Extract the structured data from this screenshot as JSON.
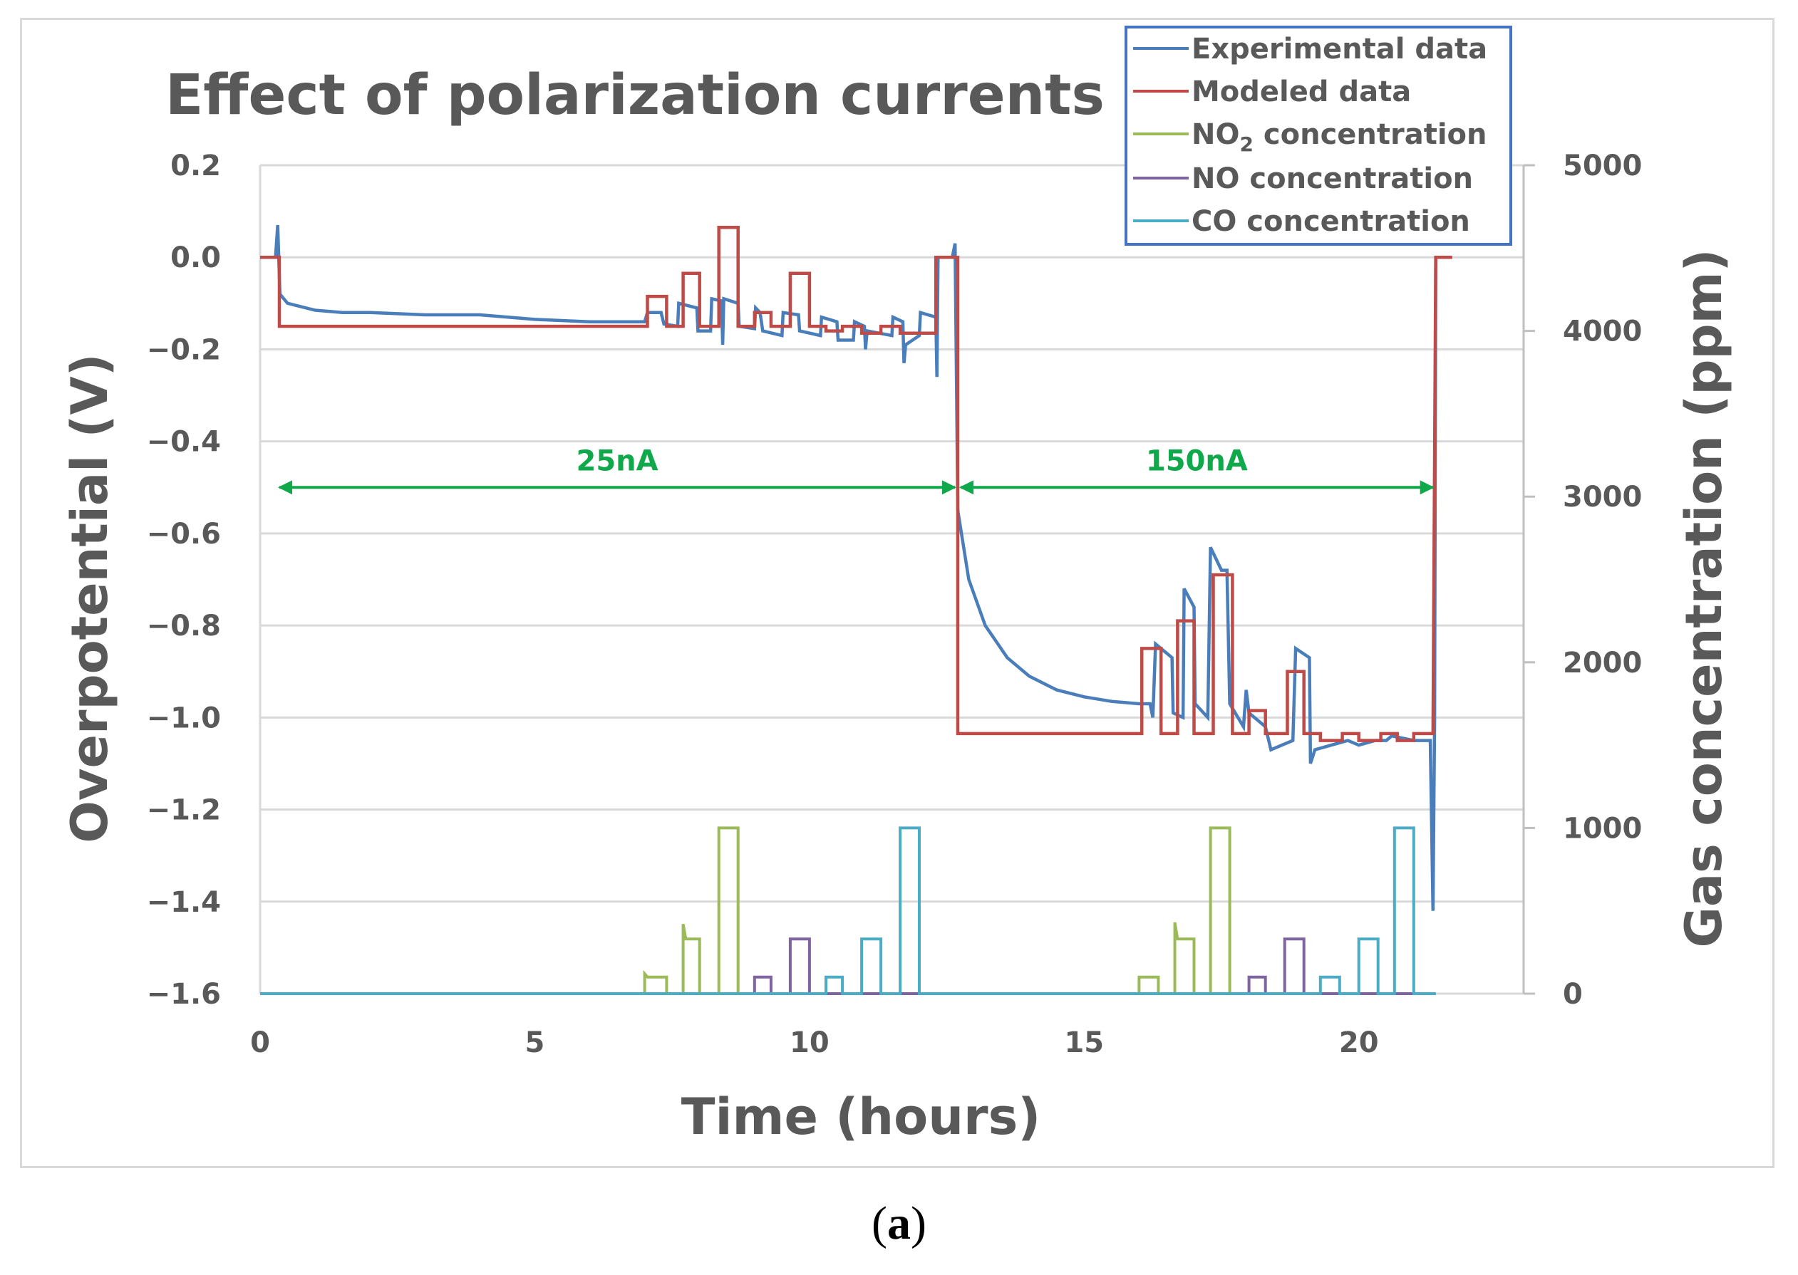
{
  "caption": {
    "open": "(",
    "letter": "a",
    "close": ")"
  },
  "chart_data": {
    "type": "line",
    "title": "Effect of polarization currents",
    "xlabel": "Time (hours)",
    "ylabel": "Overpotential (V)",
    "y2label": "Gas concentration (ppm)",
    "xlim": [
      0,
      23
    ],
    "ylim": [
      -1.6,
      0.2
    ],
    "y2lim": [
      0,
      5000
    ],
    "x_ticks": [
      "0",
      "5",
      "10",
      "15",
      "20"
    ],
    "x_tick_values": [
      0,
      5,
      10,
      15,
      20
    ],
    "y_ticks": [
      "0.2",
      "0.0",
      "−0.2",
      "−0.4",
      "−0.6",
      "−0.8",
      "−1.0",
      "−1.2",
      "−1.4",
      "−1.6"
    ],
    "y_tick_values": [
      0.2,
      0.0,
      -0.2,
      -0.4,
      -0.6,
      -0.8,
      -1.0,
      -1.2,
      -1.4,
      -1.6
    ],
    "y2_ticks": [
      "5000",
      "4000",
      "3000",
      "2000",
      "1000",
      "0"
    ],
    "y2_tick_values": [
      5000,
      4000,
      3000,
      2000,
      1000,
      0
    ],
    "gridlines": "horizontal",
    "legend_position": "top-right",
    "legend": [
      {
        "label": "Experimental data",
        "color": "#4a7ebb"
      },
      {
        "label": "Modeled data",
        "color": "#be4b48"
      },
      {
        "label_main": "NO",
        "label_sub": "2",
        "label_rest": " concentration",
        "color": "#9bbb59"
      },
      {
        "label": "NO concentration",
        "color": "#8064a2"
      },
      {
        "label": "CO concentration",
        "color": "#4bacc6"
      }
    ],
    "annotations": [
      {
        "text": "25nA",
        "x_start": 0.3,
        "x_end": 12.7,
        "y": -0.5
      },
      {
        "text": "150nA",
        "x_start": 12.7,
        "x_end": 21.4,
        "y": -0.5
      }
    ],
    "series": [
      {
        "name": "Experimental data",
        "axis": "left",
        "color": "#4a7ebb",
        "points": [
          [
            0,
            0.0
          ],
          [
            0.28,
            0.0
          ],
          [
            0.32,
            0.07
          ],
          [
            0.36,
            -0.08
          ],
          [
            0.5,
            -0.1
          ],
          [
            1.0,
            -0.115
          ],
          [
            1.5,
            -0.12
          ],
          [
            2.0,
            -0.12
          ],
          [
            3.0,
            -0.125
          ],
          [
            4.0,
            -0.125
          ],
          [
            5.0,
            -0.135
          ],
          [
            6.0,
            -0.14
          ],
          [
            7.0,
            -0.14
          ],
          [
            7.05,
            -0.12
          ],
          [
            7.3,
            -0.12
          ],
          [
            7.35,
            -0.145
          ],
          [
            7.6,
            -0.15
          ],
          [
            7.62,
            -0.1
          ],
          [
            7.95,
            -0.11
          ],
          [
            7.97,
            -0.16
          ],
          [
            8.2,
            -0.16
          ],
          [
            8.22,
            -0.09
          ],
          [
            8.4,
            -0.095
          ],
          [
            8.42,
            -0.19
          ],
          [
            8.44,
            -0.09
          ],
          [
            8.7,
            -0.1
          ],
          [
            8.72,
            -0.15
          ],
          [
            9.0,
            -0.155
          ],
          [
            9.02,
            -0.11
          ],
          [
            9.1,
            -0.12
          ],
          [
            9.15,
            -0.16
          ],
          [
            9.5,
            -0.17
          ],
          [
            9.52,
            -0.12
          ],
          [
            9.8,
            -0.125
          ],
          [
            9.82,
            -0.16
          ],
          [
            10.2,
            -0.17
          ],
          [
            10.22,
            -0.13
          ],
          [
            10.5,
            -0.14
          ],
          [
            10.52,
            -0.18
          ],
          [
            10.8,
            -0.18
          ],
          [
            10.82,
            -0.14
          ],
          [
            11.0,
            -0.15
          ],
          [
            11.02,
            -0.2
          ],
          [
            11.05,
            -0.16
          ],
          [
            11.5,
            -0.17
          ],
          [
            11.52,
            -0.13
          ],
          [
            11.7,
            -0.14
          ],
          [
            11.72,
            -0.23
          ],
          [
            11.75,
            -0.19
          ],
          [
            12.0,
            -0.17
          ],
          [
            12.02,
            -0.12
          ],
          [
            12.3,
            -0.13
          ],
          [
            12.32,
            -0.26
          ],
          [
            12.34,
            0.0
          ],
          [
            12.6,
            0.0
          ],
          [
            12.65,
            0.03
          ],
          [
            12.7,
            -0.55
          ],
          [
            12.9,
            -0.7
          ],
          [
            13.2,
            -0.8
          ],
          [
            13.6,
            -0.87
          ],
          [
            14.0,
            -0.91
          ],
          [
            14.5,
            -0.94
          ],
          [
            15.0,
            -0.955
          ],
          [
            15.5,
            -0.965
          ],
          [
            16.0,
            -0.97
          ],
          [
            16.2,
            -0.97
          ],
          [
            16.25,
            -1.0
          ],
          [
            16.3,
            -0.84
          ],
          [
            16.6,
            -0.87
          ],
          [
            16.62,
            -0.99
          ],
          [
            16.8,
            -1.0
          ],
          [
            16.82,
            -0.72
          ],
          [
            17.0,
            -0.76
          ],
          [
            17.02,
            -0.97
          ],
          [
            17.25,
            -1.0
          ],
          [
            17.3,
            -0.63
          ],
          [
            17.5,
            -0.68
          ],
          [
            17.6,
            -0.68
          ],
          [
            17.65,
            -0.97
          ],
          [
            17.9,
            -1.02
          ],
          [
            17.95,
            -0.94
          ],
          [
            18.0,
            -0.99
          ],
          [
            18.3,
            -1.02
          ],
          [
            18.4,
            -1.07
          ],
          [
            18.6,
            -1.06
          ],
          [
            18.8,
            -1.05
          ],
          [
            18.85,
            -0.85
          ],
          [
            19.1,
            -0.87
          ],
          [
            19.12,
            -1.1
          ],
          [
            19.2,
            -1.07
          ],
          [
            19.5,
            -1.06
          ],
          [
            19.8,
            -1.05
          ],
          [
            20.0,
            -1.06
          ],
          [
            20.3,
            -1.05
          ],
          [
            20.5,
            -1.05
          ],
          [
            20.6,
            -1.04
          ],
          [
            21.0,
            -1.05
          ],
          [
            21.3,
            -1.05
          ],
          [
            21.35,
            -1.42
          ],
          [
            21.38,
            -1.0
          ],
          [
            21.4,
            0.0
          ],
          [
            21.6,
            0.0
          ]
        ]
      },
      {
        "name": "Modeled data",
        "axis": "left",
        "color": "#be4b48",
        "points": [
          [
            0,
            0.0
          ],
          [
            0.35,
            0.0
          ],
          [
            0.35,
            -0.15
          ],
          [
            7.05,
            -0.15
          ],
          [
            7.05,
            -0.085
          ],
          [
            7.4,
            -0.085
          ],
          [
            7.4,
            -0.15
          ],
          [
            7.7,
            -0.15
          ],
          [
            7.7,
            -0.035
          ],
          [
            8.0,
            -0.035
          ],
          [
            8.0,
            -0.15
          ],
          [
            8.35,
            -0.15
          ],
          [
            8.35,
            0.065
          ],
          [
            8.7,
            0.065
          ],
          [
            8.7,
            -0.15
          ],
          [
            9.0,
            -0.15
          ],
          [
            9.0,
            -0.12
          ],
          [
            9.3,
            -0.12
          ],
          [
            9.3,
            -0.15
          ],
          [
            9.65,
            -0.15
          ],
          [
            9.65,
            -0.035
          ],
          [
            10.0,
            -0.035
          ],
          [
            10.0,
            -0.15
          ],
          [
            10.3,
            -0.15
          ],
          [
            10.3,
            -0.16
          ],
          [
            10.6,
            -0.16
          ],
          [
            10.6,
            -0.15
          ],
          [
            10.95,
            -0.15
          ],
          [
            10.95,
            -0.165
          ],
          [
            11.3,
            -0.165
          ],
          [
            11.3,
            -0.15
          ],
          [
            11.65,
            -0.15
          ],
          [
            11.65,
            -0.165
          ],
          [
            12.3,
            -0.165
          ],
          [
            12.3,
            0.0
          ],
          [
            12.7,
            0.0
          ],
          [
            12.7,
            -1.035
          ],
          [
            16.05,
            -1.035
          ],
          [
            16.05,
            -0.85
          ],
          [
            16.4,
            -0.85
          ],
          [
            16.4,
            -1.035
          ],
          [
            16.7,
            -1.035
          ],
          [
            16.7,
            -0.79
          ],
          [
            17.0,
            -0.79
          ],
          [
            17.0,
            -1.035
          ],
          [
            17.35,
            -1.035
          ],
          [
            17.35,
            -0.69
          ],
          [
            17.7,
            -0.69
          ],
          [
            17.7,
            -1.035
          ],
          [
            18.0,
            -1.035
          ],
          [
            18.0,
            -0.985
          ],
          [
            18.3,
            -0.985
          ],
          [
            18.3,
            -1.035
          ],
          [
            18.7,
            -1.035
          ],
          [
            18.7,
            -0.9
          ],
          [
            19.0,
            -0.9
          ],
          [
            19.0,
            -1.035
          ],
          [
            19.3,
            -1.035
          ],
          [
            19.3,
            -1.05
          ],
          [
            19.7,
            -1.05
          ],
          [
            19.7,
            -1.035
          ],
          [
            20.0,
            -1.035
          ],
          [
            20.0,
            -1.05
          ],
          [
            20.4,
            -1.05
          ],
          [
            20.4,
            -1.035
          ],
          [
            20.7,
            -1.035
          ],
          [
            20.7,
            -1.05
          ],
          [
            21.0,
            -1.05
          ],
          [
            21.0,
            -1.035
          ],
          [
            21.35,
            -1.035
          ],
          [
            21.4,
            0.0
          ],
          [
            21.7,
            0.0
          ]
        ]
      },
      {
        "name": "NO2 concentration",
        "axis": "right",
        "color": "#9bbb59",
        "points": [
          [
            0,
            0
          ],
          [
            7.0,
            0
          ],
          [
            7.0,
            120
          ],
          [
            7.05,
            100
          ],
          [
            7.4,
            100
          ],
          [
            7.4,
            0
          ],
          [
            7.7,
            0
          ],
          [
            7.7,
            420
          ],
          [
            7.75,
            330
          ],
          [
            8.0,
            330
          ],
          [
            8.0,
            0
          ],
          [
            8.35,
            0
          ],
          [
            8.35,
            1000
          ],
          [
            8.7,
            1000
          ],
          [
            8.7,
            0
          ],
          [
            16.0,
            0
          ],
          [
            16.0,
            100
          ],
          [
            16.35,
            100
          ],
          [
            16.35,
            0
          ],
          [
            16.65,
            0
          ],
          [
            16.65,
            430
          ],
          [
            16.7,
            330
          ],
          [
            17.0,
            330
          ],
          [
            17.0,
            0
          ],
          [
            17.3,
            0
          ],
          [
            17.3,
            1000
          ],
          [
            17.65,
            1000
          ],
          [
            17.65,
            0
          ],
          [
            21.4,
            0
          ]
        ]
      },
      {
        "name": "NO concentration",
        "axis": "right",
        "color": "#8064a2",
        "points": [
          [
            0,
            0
          ],
          [
            9.0,
            0
          ],
          [
            9.0,
            100
          ],
          [
            9.3,
            100
          ],
          [
            9.3,
            0
          ],
          [
            9.65,
            0
          ],
          [
            9.65,
            330
          ],
          [
            10.0,
            330
          ],
          [
            10.0,
            0
          ],
          [
            11.3,
            0
          ],
          [
            11.6,
            0
          ],
          [
            18.0,
            0
          ],
          [
            18.0,
            100
          ],
          [
            18.3,
            100
          ],
          [
            18.3,
            0
          ],
          [
            18.65,
            0
          ],
          [
            18.65,
            330
          ],
          [
            19.0,
            330
          ],
          [
            19.0,
            0
          ],
          [
            21.4,
            0
          ]
        ]
      },
      {
        "name": "CO concentration",
        "axis": "right",
        "color": "#4bacc6",
        "points": [
          [
            0,
            0
          ],
          [
            10.3,
            0
          ],
          [
            10.3,
            100
          ],
          [
            10.6,
            100
          ],
          [
            10.6,
            0
          ],
          [
            10.95,
            0
          ],
          [
            10.95,
            330
          ],
          [
            11.3,
            330
          ],
          [
            11.3,
            0
          ],
          [
            11.65,
            0
          ],
          [
            11.65,
            1000
          ],
          [
            12.0,
            1000
          ],
          [
            12.0,
            0
          ],
          [
            19.3,
            0
          ],
          [
            19.3,
            100
          ],
          [
            19.65,
            100
          ],
          [
            19.65,
            0
          ],
          [
            20.0,
            0
          ],
          [
            20.0,
            330
          ],
          [
            20.35,
            330
          ],
          [
            20.35,
            0
          ],
          [
            20.65,
            0
          ],
          [
            20.65,
            1000
          ],
          [
            21.0,
            1000
          ],
          [
            21.0,
            0
          ],
          [
            21.4,
            0
          ]
        ]
      }
    ]
  }
}
